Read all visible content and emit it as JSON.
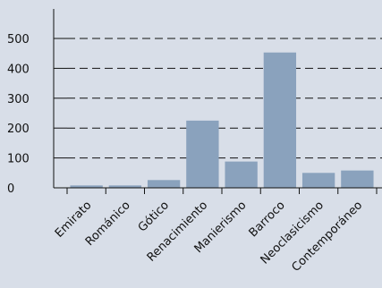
{
  "chart_data": {
    "type": "bar",
    "title": "",
    "xlabel": "",
    "ylabel": "",
    "categories": [
      "Emirato",
      "Románico",
      "Gótico",
      "Renacimiento",
      "Manierismo",
      "Barroco",
      "Neoclasicismo",
      "Contemporáneo"
    ],
    "values": [
      8,
      8,
      26,
      225,
      88,
      453,
      50,
      58
    ],
    "ylim": [
      0,
      500
    ],
    "yticks": [
      0,
      100,
      200,
      300,
      400,
      500
    ],
    "grid": "horizontal dashed",
    "bar_color": "#8aa2bd",
    "background_color": "#d8dee8"
  }
}
